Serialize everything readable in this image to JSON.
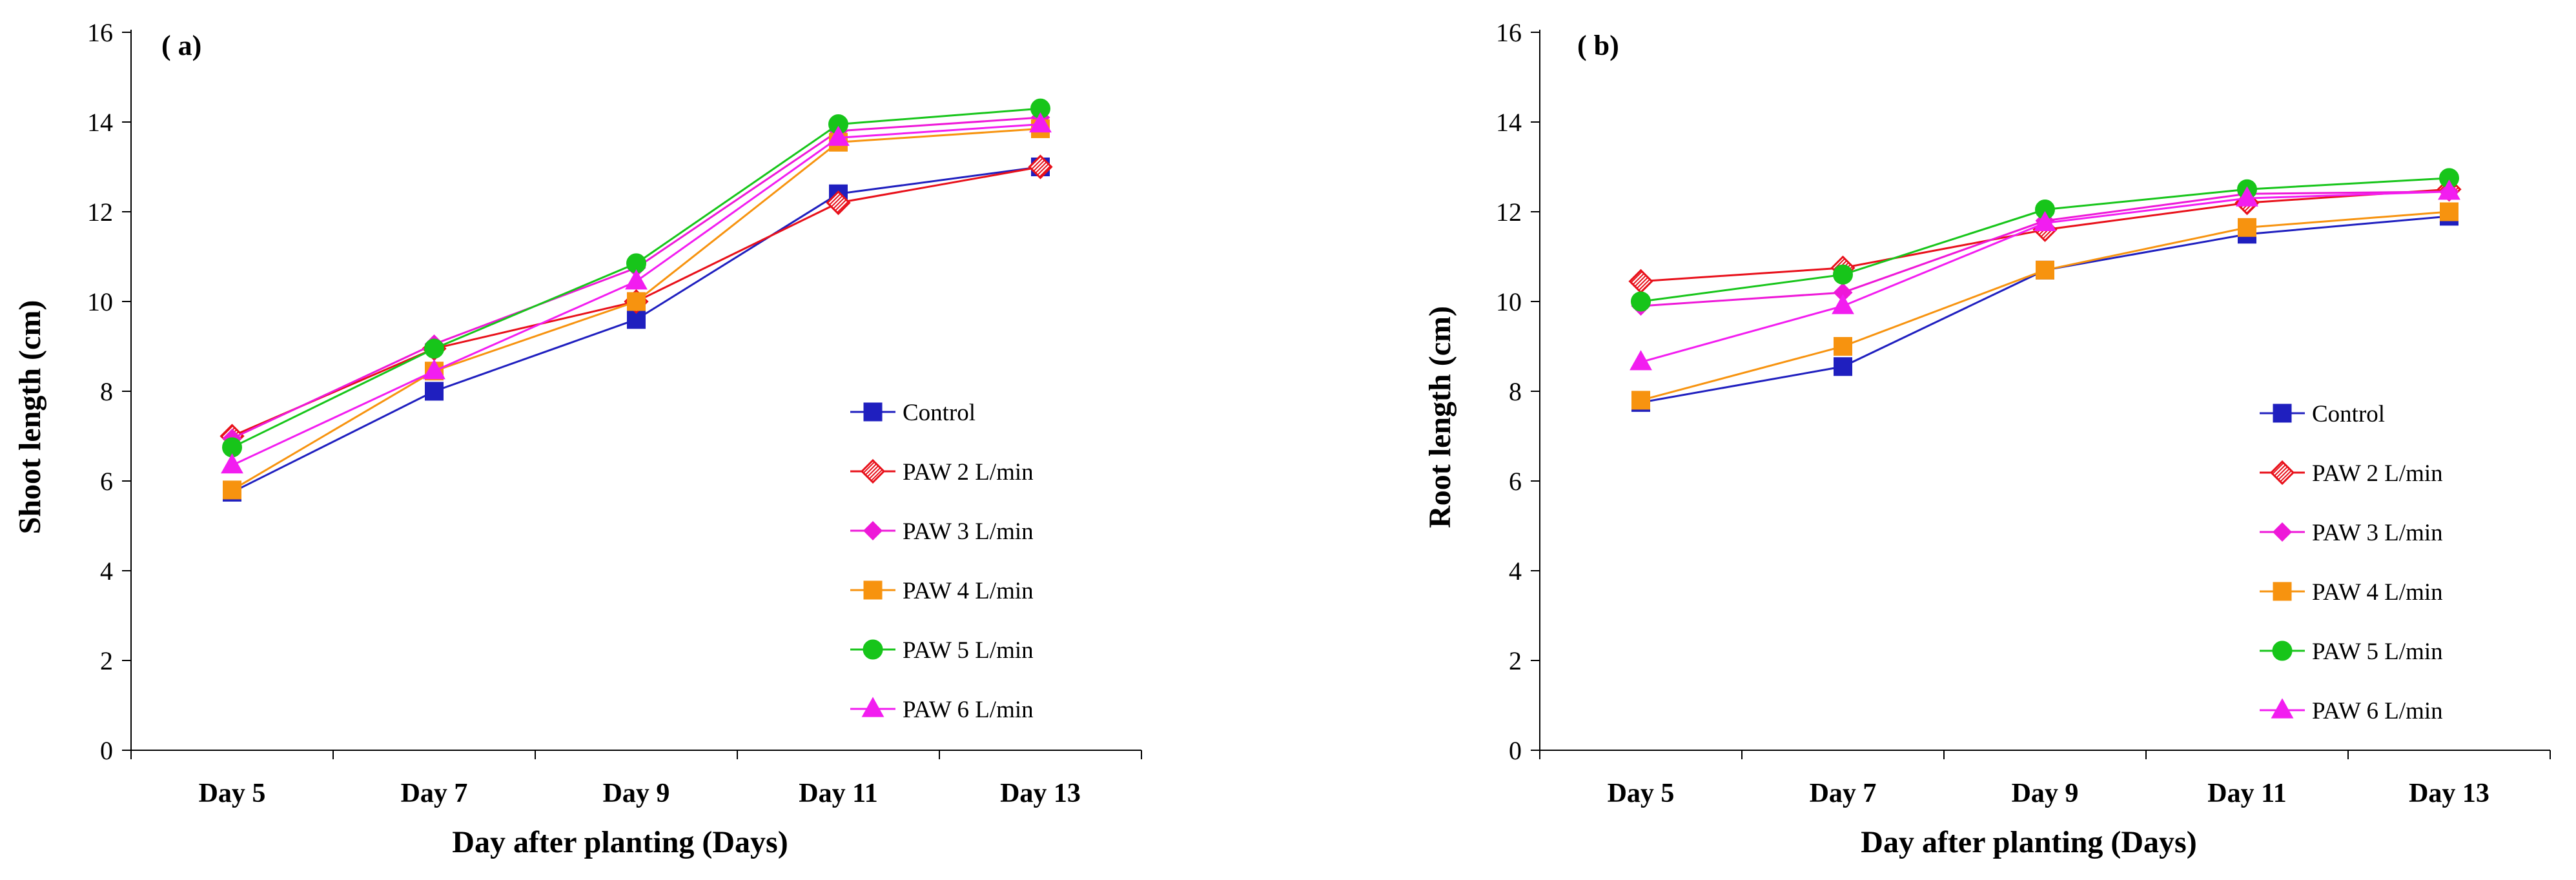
{
  "chart_data": [
    {
      "type": "line",
      "panel_label": "( a)",
      "xlabel": "Day after planting (Days)",
      "ylabel": "Shoot  length (cm)",
      "categories": [
        "Day 5",
        "Day 7",
        "Day 9",
        "Day 11",
        "Day 13"
      ],
      "ylim": [
        0,
        16
      ],
      "yticks": [
        "0",
        "2",
        "4",
        "6",
        "8",
        "10",
        "12",
        "14",
        "16"
      ],
      "grid": false,
      "legend_position": "lower-right",
      "series": [
        {
          "name": "Control",
          "values": [
            5.75,
            8.0,
            9.6,
            12.4,
            13.0
          ],
          "color": "#1f1fbf",
          "marker": "square"
        },
        {
          "name": "PAW 2 L/min",
          "values": [
            7.0,
            8.95,
            10.0,
            12.2,
            13.0
          ],
          "color": "#e8101a",
          "marker": "diamond-hatched"
        },
        {
          "name": "PAW 3 L/min",
          "values": [
            6.95,
            9.05,
            10.75,
            13.8,
            14.1
          ],
          "color": "#ee18d8",
          "marker": "diamond"
        },
        {
          "name": "PAW 4 L/min",
          "values": [
            5.8,
            8.45,
            10.0,
            13.55,
            13.85
          ],
          "color": "#f7930f",
          "marker": "square"
        },
        {
          "name": "PAW 5 L/min",
          "values": [
            6.75,
            8.95,
            10.85,
            13.95,
            14.3
          ],
          "color": "#17c51a",
          "marker": "circle"
        },
        {
          "name": "PAW 6 L/min",
          "values": [
            6.35,
            8.45,
            10.45,
            13.65,
            13.95
          ],
          "color": "#f21df0",
          "marker": "triangle"
        }
      ]
    },
    {
      "type": "line",
      "panel_label": "( b)",
      "xlabel": "Day after planting (Days)",
      "ylabel": "Root  length (cm)",
      "categories": [
        "Day 5",
        "Day 7",
        "Day 9",
        "Day 11",
        "Day 13"
      ],
      "ylim": [
        0,
        16
      ],
      "yticks": [
        "0",
        "2",
        "4",
        "6",
        "8",
        "10",
        "12",
        "14",
        "16"
      ],
      "grid": false,
      "legend_position": "lower-right",
      "series": [
        {
          "name": "Control",
          "values": [
            7.75,
            8.55,
            10.7,
            11.5,
            11.9
          ],
          "color": "#1f1fbf",
          "marker": "square"
        },
        {
          "name": "PAW 2 L/min",
          "values": [
            10.45,
            10.75,
            11.6,
            12.2,
            12.5
          ],
          "color": "#e8101a",
          "marker": "diamond-hatched"
        },
        {
          "name": "PAW 3 L/min",
          "values": [
            9.9,
            10.2,
            11.8,
            12.4,
            12.45
          ],
          "color": "#ee18d8",
          "marker": "diamond"
        },
        {
          "name": "PAW 4 L/min",
          "values": [
            7.8,
            9.0,
            10.7,
            11.65,
            12.0
          ],
          "color": "#f7930f",
          "marker": "square"
        },
        {
          "name": "PAW 5 L/min",
          "values": [
            10.0,
            10.6,
            12.05,
            12.5,
            12.75
          ],
          "color": "#17c51a",
          "marker": "circle"
        },
        {
          "name": "PAW 6 L/min",
          "values": [
            8.65,
            9.9,
            11.75,
            12.3,
            12.45
          ],
          "color": "#f21df0",
          "marker": "triangle"
        }
      ]
    }
  ]
}
